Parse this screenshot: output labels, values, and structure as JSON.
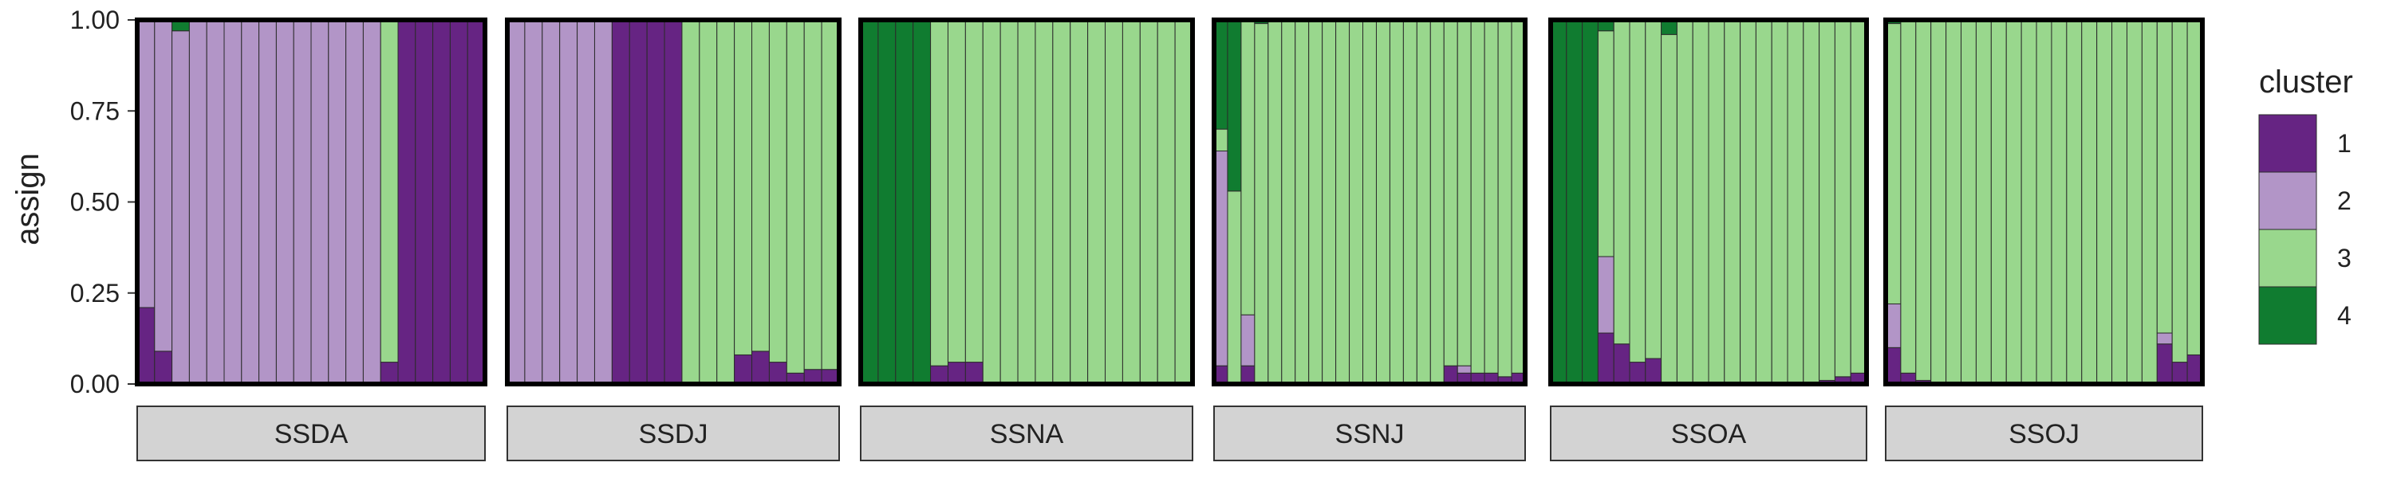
{
  "chart_data": {
    "type": "stacked-bar",
    "ylabel": "assign",
    "ylim": [
      0,
      1
    ],
    "yticks": [
      "0.00",
      "0.25",
      "0.50",
      "0.75",
      "1.00"
    ],
    "legend": {
      "title": "cluster",
      "position": "right",
      "items": [
        {
          "label": "1",
          "color": "#662483"
        },
        {
          "label": "2",
          "color": "#B295C7"
        },
        {
          "label": "3",
          "color": "#99D78D"
        },
        {
          "label": "4",
          "color": "#107C30"
        }
      ]
    },
    "stack_order": [
      "1",
      "2",
      "3",
      "4"
    ],
    "facets": [
      {
        "label": "SSDA",
        "bars": [
          [
            0.21,
            0.79,
            0.0,
            0.0
          ],
          [
            0.09,
            0.91,
            0.0,
            0.0
          ],
          [
            0.0,
            0.97,
            0.0,
            0.03
          ],
          [
            0.0,
            1.0,
            0.0,
            0.0
          ],
          [
            0.0,
            1.0,
            0.0,
            0.0
          ],
          [
            0.0,
            1.0,
            0.0,
            0.0
          ],
          [
            0.0,
            1.0,
            0.0,
            0.0
          ],
          [
            0.0,
            1.0,
            0.0,
            0.0
          ],
          [
            0.0,
            1.0,
            0.0,
            0.0
          ],
          [
            0.0,
            1.0,
            0.0,
            0.0
          ],
          [
            0.0,
            1.0,
            0.0,
            0.0
          ],
          [
            0.0,
            1.0,
            0.0,
            0.0
          ],
          [
            0.0,
            1.0,
            0.0,
            0.0
          ],
          [
            0.0,
            1.0,
            0.0,
            0.0
          ],
          [
            0.06,
            0.0,
            0.94,
            0.0
          ],
          [
            1.0,
            0.0,
            0.0,
            0.0
          ],
          [
            1.0,
            0.0,
            0.0,
            0.0
          ],
          [
            1.0,
            0.0,
            0.0,
            0.0
          ],
          [
            1.0,
            0.0,
            0.0,
            0.0
          ],
          [
            1.0,
            0.0,
            0.0,
            0.0
          ]
        ]
      },
      {
        "label": "SSDJ",
        "bars": [
          [
            0.0,
            1.0,
            0.0,
            0.0
          ],
          [
            0.0,
            1.0,
            0.0,
            0.0
          ],
          [
            0.0,
            1.0,
            0.0,
            0.0
          ],
          [
            0.0,
            1.0,
            0.0,
            0.0
          ],
          [
            0.0,
            1.0,
            0.0,
            0.0
          ],
          [
            0.0,
            1.0,
            0.0,
            0.0
          ],
          [
            1.0,
            0.0,
            0.0,
            0.0
          ],
          [
            1.0,
            0.0,
            0.0,
            0.0
          ],
          [
            1.0,
            0.0,
            0.0,
            0.0
          ],
          [
            1.0,
            0.0,
            0.0,
            0.0
          ],
          [
            0.0,
            0.0,
            1.0,
            0.0
          ],
          [
            0.0,
            0.0,
            1.0,
            0.0
          ],
          [
            0.0,
            0.0,
            1.0,
            0.0
          ],
          [
            0.08,
            0.0,
            0.92,
            0.0
          ],
          [
            0.09,
            0.0,
            0.91,
            0.0
          ],
          [
            0.06,
            0.0,
            0.94,
            0.0
          ],
          [
            0.03,
            0.0,
            0.97,
            0.0
          ],
          [
            0.04,
            0.0,
            0.96,
            0.0
          ],
          [
            0.04,
            0.0,
            0.96,
            0.0
          ]
        ]
      },
      {
        "label": "SSNA",
        "bars": [
          [
            0.0,
            0.0,
            0.0,
            1.0
          ],
          [
            0.0,
            0.0,
            0.0,
            1.0
          ],
          [
            0.0,
            0.0,
            0.0,
            1.0
          ],
          [
            0.0,
            0.0,
            0.0,
            1.0
          ],
          [
            0.05,
            0.0,
            0.95,
            0.0
          ],
          [
            0.06,
            0.0,
            0.94,
            0.0
          ],
          [
            0.06,
            0.0,
            0.94,
            0.0
          ],
          [
            0.0,
            0.0,
            1.0,
            0.0
          ],
          [
            0.0,
            0.0,
            1.0,
            0.0
          ],
          [
            0.0,
            0.0,
            1.0,
            0.0
          ],
          [
            0.0,
            0.0,
            1.0,
            0.0
          ],
          [
            0.0,
            0.0,
            1.0,
            0.0
          ],
          [
            0.0,
            0.0,
            1.0,
            0.0
          ],
          [
            0.0,
            0.0,
            1.0,
            0.0
          ],
          [
            0.0,
            0.0,
            1.0,
            0.0
          ],
          [
            0.0,
            0.0,
            1.0,
            0.0
          ],
          [
            0.0,
            0.0,
            1.0,
            0.0
          ],
          [
            0.0,
            0.0,
            1.0,
            0.0
          ],
          [
            0.0,
            0.0,
            1.0,
            0.0
          ]
        ]
      },
      {
        "label": "SSNJ",
        "bars": [
          [
            0.05,
            0.59,
            0.06,
            0.3
          ],
          [
            0.0,
            0.0,
            0.53,
            0.47
          ],
          [
            0.05,
            0.14,
            0.81,
            0.0
          ],
          [
            0.0,
            0.0,
            0.99,
            0.01
          ],
          [
            0.0,
            0.0,
            1.0,
            0.0
          ],
          [
            0.0,
            0.0,
            1.0,
            0.0
          ],
          [
            0.0,
            0.0,
            1.0,
            0.0
          ],
          [
            0.0,
            0.0,
            1.0,
            0.0
          ],
          [
            0.0,
            0.0,
            1.0,
            0.0
          ],
          [
            0.0,
            0.0,
            1.0,
            0.0
          ],
          [
            0.0,
            0.0,
            1.0,
            0.0
          ],
          [
            0.0,
            0.0,
            1.0,
            0.0
          ],
          [
            0.0,
            0.0,
            1.0,
            0.0
          ],
          [
            0.0,
            0.0,
            1.0,
            0.0
          ],
          [
            0.0,
            0.0,
            1.0,
            0.0
          ],
          [
            0.0,
            0.0,
            1.0,
            0.0
          ],
          [
            0.0,
            0.0,
            1.0,
            0.0
          ],
          [
            0.05,
            0.0,
            0.95,
            0.0
          ],
          [
            0.03,
            0.02,
            0.95,
            0.0
          ],
          [
            0.03,
            0.0,
            0.97,
            0.0
          ],
          [
            0.03,
            0.0,
            0.97,
            0.0
          ],
          [
            0.02,
            0.0,
            0.98,
            0.0
          ],
          [
            0.03,
            0.0,
            0.97,
            0.0
          ]
        ]
      },
      {
        "label": "SSOA",
        "bars": [
          [
            0.0,
            0.0,
            0.0,
            1.0
          ],
          [
            0.0,
            0.0,
            0.0,
            1.0
          ],
          [
            0.0,
            0.0,
            0.0,
            1.0
          ],
          [
            0.14,
            0.21,
            0.62,
            0.03
          ],
          [
            0.11,
            0.0,
            0.89,
            0.0
          ],
          [
            0.06,
            0.0,
            0.94,
            0.0
          ],
          [
            0.07,
            0.0,
            0.93,
            0.0
          ],
          [
            0.0,
            0.0,
            0.96,
            0.04
          ],
          [
            0.0,
            0.0,
            1.0,
            0.0
          ],
          [
            0.0,
            0.0,
            1.0,
            0.0
          ],
          [
            0.0,
            0.0,
            1.0,
            0.0
          ],
          [
            0.0,
            0.0,
            1.0,
            0.0
          ],
          [
            0.0,
            0.0,
            1.0,
            0.0
          ],
          [
            0.0,
            0.0,
            1.0,
            0.0
          ],
          [
            0.0,
            0.0,
            1.0,
            0.0
          ],
          [
            0.0,
            0.0,
            1.0,
            0.0
          ],
          [
            0.0,
            0.0,
            1.0,
            0.0
          ],
          [
            0.01,
            0.0,
            0.99,
            0.0
          ],
          [
            0.02,
            0.0,
            0.98,
            0.0
          ],
          [
            0.03,
            0.0,
            0.97,
            0.0
          ]
        ]
      },
      {
        "label": "SSOJ",
        "bars": [
          [
            0.1,
            0.12,
            0.77,
            0.01
          ],
          [
            0.03,
            0.0,
            0.97,
            0.0
          ],
          [
            0.01,
            0.0,
            0.99,
            0.0
          ],
          [
            0.0,
            0.0,
            1.0,
            0.0
          ],
          [
            0.0,
            0.0,
            1.0,
            0.0
          ],
          [
            0.0,
            0.0,
            1.0,
            0.0
          ],
          [
            0.0,
            0.0,
            1.0,
            0.0
          ],
          [
            0.0,
            0.0,
            1.0,
            0.0
          ],
          [
            0.0,
            0.0,
            1.0,
            0.0
          ],
          [
            0.0,
            0.0,
            1.0,
            0.0
          ],
          [
            0.0,
            0.0,
            1.0,
            0.0
          ],
          [
            0.0,
            0.0,
            1.0,
            0.0
          ],
          [
            0.0,
            0.0,
            1.0,
            0.0
          ],
          [
            0.0,
            0.0,
            1.0,
            0.0
          ],
          [
            0.0,
            0.0,
            1.0,
            0.0
          ],
          [
            0.0,
            0.0,
            1.0,
            0.0
          ],
          [
            0.0,
            0.0,
            1.0,
            0.0
          ],
          [
            0.0,
            0.0,
            1.0,
            0.0
          ],
          [
            0.11,
            0.03,
            0.86,
            0.0
          ],
          [
            0.06,
            0.0,
            0.94,
            0.0
          ],
          [
            0.08,
            0.0,
            0.92,
            0.0
          ]
        ]
      }
    ]
  }
}
